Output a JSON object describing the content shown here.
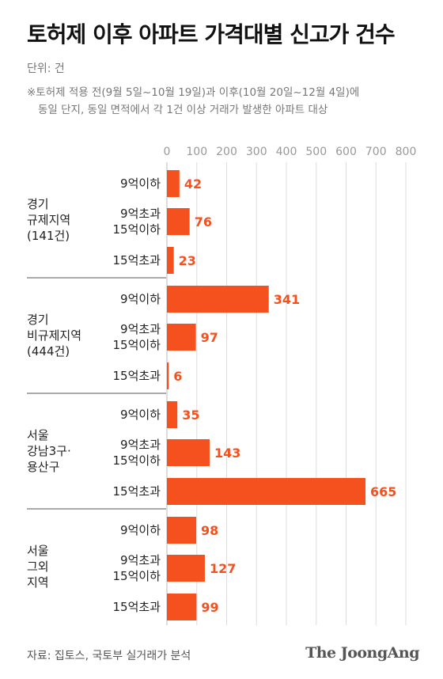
{
  "title": "토허제 이후 아파트 가격대별 신고가 건수",
  "unit": "단위: 건",
  "note_line1": "※토허제 적용 전(9월 5일~10월 19일)과 이후(10월 20일~12월 4일)에",
  "note_line2": "동일 단지, 동일 면적에서 각 1건 이상 거래가 발생한 아파트 대상",
  "source": "자료: 집토스, 국토부 실거래가 분석",
  "logo": "The JoongAng",
  "colors": {
    "bar": "#f4511e",
    "label": "#f4511e",
    "grid": "#dddddd",
    "axis": "#999999",
    "separator": "#555555"
  },
  "chart_data": {
    "type": "bar",
    "orientation": "horizontal",
    "xlim": [
      0,
      800
    ],
    "xticks": [
      0,
      100,
      200,
      300,
      400,
      500,
      600,
      700,
      800
    ],
    "grid": true,
    "groups": [
      {
        "label": [
          "경기",
          "규제지역",
          "(141건)"
        ],
        "bars": [
          {
            "category": [
              "9억이하"
            ],
            "value": 42
          },
          {
            "category": [
              "9억초과",
              "15억이하"
            ],
            "value": 76
          },
          {
            "category": [
              "15억초과"
            ],
            "value": 23
          }
        ]
      },
      {
        "label": [
          "경기",
          "비규제지역",
          "(444건)"
        ],
        "bars": [
          {
            "category": [
              "9억이하"
            ],
            "value": 341
          },
          {
            "category": [
              "9억초과",
              "15억이하"
            ],
            "value": 97
          },
          {
            "category": [
              "15억초과"
            ],
            "value": 6
          }
        ]
      },
      {
        "label": [
          "서울",
          "강남3구·",
          "용산구"
        ],
        "bars": [
          {
            "category": [
              "9억이하"
            ],
            "value": 35
          },
          {
            "category": [
              "9억초과",
              "15억이하"
            ],
            "value": 143
          },
          {
            "category": [
              "15억초과"
            ],
            "value": 665
          }
        ]
      },
      {
        "label": [
          "서울",
          "그외",
          "지역"
        ],
        "bars": [
          {
            "category": [
              "9억이하"
            ],
            "value": 98
          },
          {
            "category": [
              "9억초과",
              "15억이하"
            ],
            "value": 127
          },
          {
            "category": [
              "15억초과"
            ],
            "value": 99
          }
        ]
      }
    ]
  }
}
